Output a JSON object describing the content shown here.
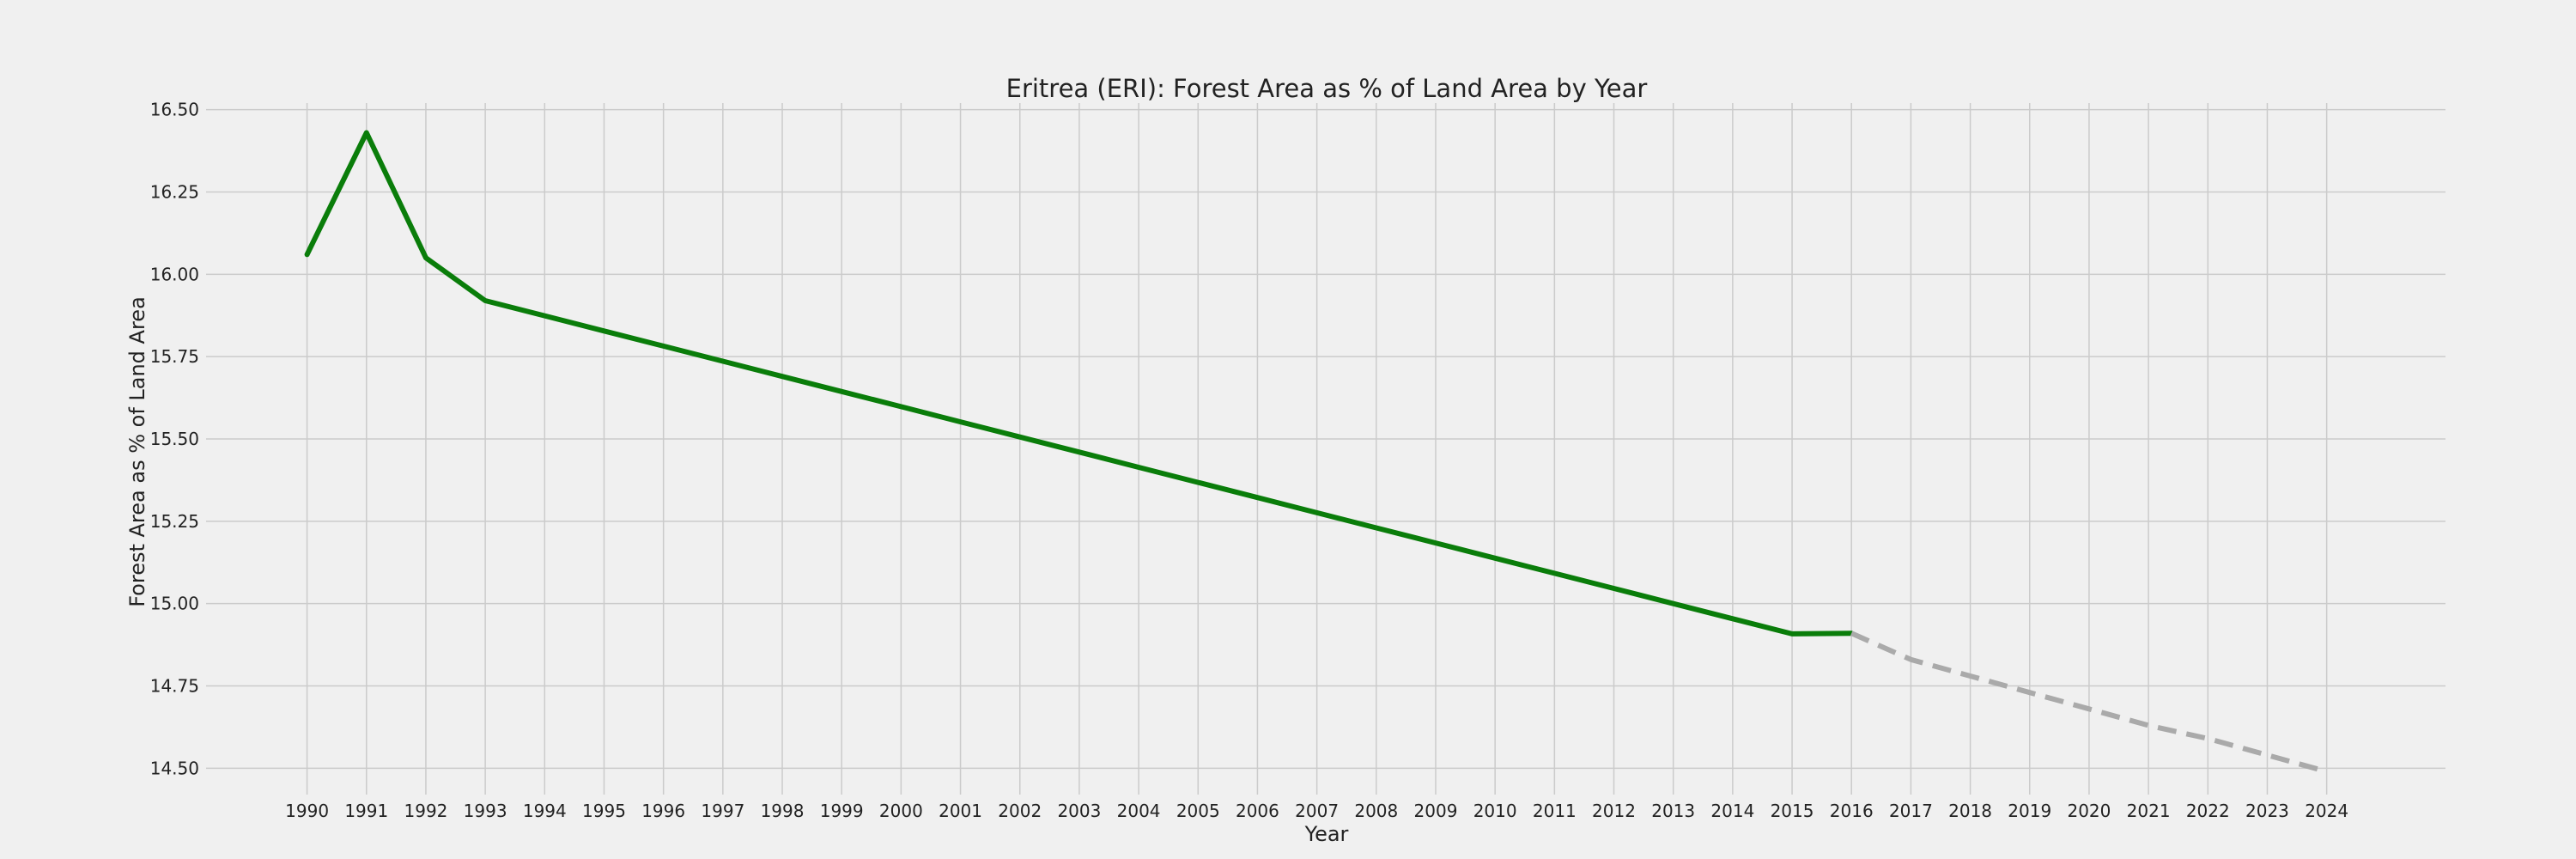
{
  "chart_data": {
    "type": "line",
    "title": "Eritrea (ERI): Forest Area as % of Land Area by Year",
    "xlabel": "Year",
    "ylabel": "Forest Area as % of Land Area",
    "x": [
      1990,
      1991,
      1992,
      1993,
      1994,
      1995,
      1996,
      1997,
      1998,
      1999,
      2000,
      2001,
      2002,
      2003,
      2004,
      2005,
      2006,
      2007,
      2008,
      2009,
      2010,
      2011,
      2012,
      2013,
      2014,
      2015,
      2016,
      2017,
      2018,
      2019,
      2020,
      2021,
      2022,
      2023,
      2024
    ],
    "xlim": [
      1988.3,
      2026.0
    ],
    "ylim": [
      14.42,
      16.52
    ],
    "y_ticks": [
      14.5,
      14.75,
      15.0,
      15.25,
      15.5,
      15.75,
      16.0,
      16.25,
      16.5
    ],
    "y_tick_labels": [
      "14.50",
      "14.75",
      "15.00",
      "15.25",
      "15.50",
      "15.75",
      "16.00",
      "16.25",
      "16.50"
    ],
    "grid": true,
    "series": [
      {
        "style": "solid",
        "color": "#0a7d0a",
        "x": [
          1990,
          1991,
          1992,
          1993,
          1994,
          1995,
          1996,
          1997,
          1998,
          1999,
          2000,
          2001,
          2002,
          2003,
          2004,
          2005,
          2006,
          2007,
          2008,
          2009,
          2010,
          2011,
          2012,
          2013,
          2014,
          2015,
          2016
        ],
        "values": [
          16.06,
          16.43,
          16.05,
          15.92,
          15.874,
          15.828,
          15.782,
          15.736,
          15.69,
          15.644,
          15.598,
          15.552,
          15.506,
          15.46,
          15.414,
          15.368,
          15.322,
          15.276,
          15.23,
          15.184,
          15.138,
          15.092,
          15.046,
          15.0,
          14.954,
          14.908,
          14.91
        ]
      },
      {
        "style": "dashed",
        "color": "#aaaaaa",
        "x": [
          2016,
          2017,
          2018,
          2019,
          2020,
          2021,
          2022,
          2023,
          2024
        ],
        "values": [
          14.91,
          14.83,
          14.78,
          14.73,
          14.68,
          14.63,
          14.59,
          14.54,
          14.49
        ]
      }
    ]
  }
}
